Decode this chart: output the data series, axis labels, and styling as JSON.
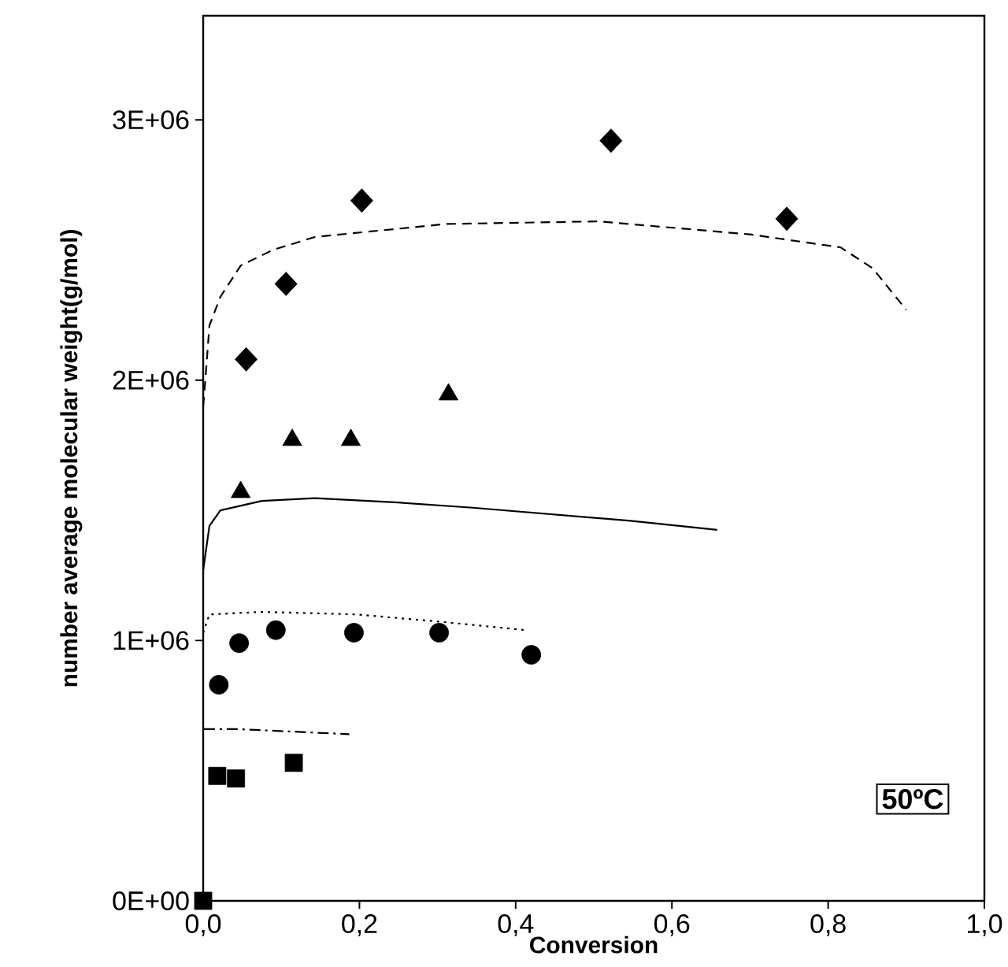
{
  "chart_data": {
    "type": "scatter",
    "xlabel": "Conversion",
    "ylabel": "number average molecular weight(g/mol)",
    "xlim": [
      0,
      1.0
    ],
    "ylim": [
      0,
      3400000
    ],
    "xticks": [
      {
        "value": 0,
        "label": "0,0"
      },
      {
        "value": 0.2,
        "label": "0,2"
      },
      {
        "value": 0.4,
        "label": "0,4"
      },
      {
        "value": 0.6,
        "label": "0,6"
      },
      {
        "value": 0.8,
        "label": "0,8"
      },
      {
        "value": 1.0,
        "label": "1,0"
      }
    ],
    "yticks": [
      {
        "value": 0,
        "label": "0E+00"
      },
      {
        "value": 1000000,
        "label": "1E+06"
      },
      {
        "value": 2000000,
        "label": "2E+06"
      },
      {
        "value": 3000000,
        "label": "3E+06"
      }
    ],
    "grid": false,
    "annotations": [
      "50ºC"
    ],
    "series": [
      {
        "marker": "diamond",
        "color": "#000000",
        "x": [
          0.055,
          0.106,
          0.203,
          0.522,
          0.747
        ],
        "values": [
          2080000,
          2370000,
          2690000,
          2920000,
          2620000
        ]
      },
      {
        "marker": "triangle",
        "color": "#000000",
        "x": [
          0.048,
          0.114,
          0.189,
          0.314
        ],
        "values": [
          1570000,
          1770000,
          1770000,
          1945000
        ]
      },
      {
        "marker": "circle",
        "color": "#000000",
        "x": [
          0.02,
          0.046,
          0.093,
          0.193,
          0.302,
          0.42
        ],
        "values": [
          830000,
          990000,
          1040000,
          1030000,
          1030000,
          945000
        ]
      },
      {
        "marker": "square",
        "color": "#000000",
        "x": [
          0.0,
          0.018,
          0.042,
          0.116
        ],
        "values": [
          0,
          480000,
          470000,
          530000
        ]
      },
      {
        "type": "line",
        "line_style": "dashed",
        "color": "#000000",
        "x": [
          0.0,
          0.003,
          0.008,
          0.022,
          0.048,
          0.089,
          0.143,
          0.21,
          0.311,
          0.506,
          0.7,
          0.816,
          0.857,
          0.9
        ],
        "values": [
          1900000,
          2010000,
          2210000,
          2320000,
          2440000,
          2500000,
          2550000,
          2570000,
          2600000,
          2610000,
          2560000,
          2510000,
          2430000,
          2270000
        ]
      },
      {
        "type": "line",
        "line_style": "solid",
        "color": "#000000",
        "x": [
          0.0,
          0.008,
          0.022,
          0.075,
          0.143,
          0.25,
          0.345,
          0.547,
          0.658
        ],
        "values": [
          1270000,
          1440000,
          1500000,
          1536000,
          1547000,
          1530000,
          1510000,
          1460000,
          1425000
        ]
      },
      {
        "type": "line",
        "line_style": "dotted",
        "color": "#000000",
        "x": [
          0.0,
          0.008,
          0.075,
          0.197,
          0.311,
          0.412
        ],
        "values": [
          1030000,
          1100000,
          1110000,
          1100000,
          1070000,
          1040000
        ]
      },
      {
        "type": "line",
        "line_style": "dashdot",
        "color": "#000000",
        "x": [
          0.001,
          0.042,
          0.187
        ],
        "values": [
          660000,
          660000,
          640000
        ]
      }
    ]
  }
}
